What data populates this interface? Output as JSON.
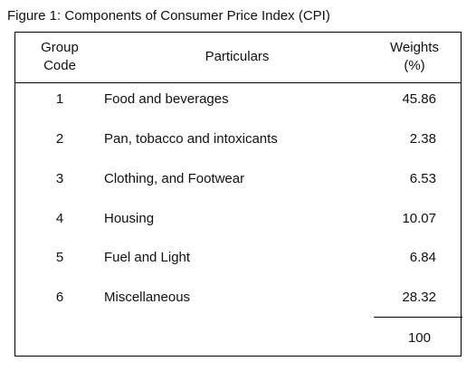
{
  "caption": "Figure 1: Components of Consumer Price Index (CPI)",
  "table": {
    "headers": {
      "group_code_line1": "Group",
      "group_code_line2": "Code",
      "particulars": "Particulars",
      "weights_line1": "Weights",
      "weights_line2": "(%)"
    },
    "rows": [
      {
        "code": "1",
        "particular": "Food and beverages",
        "weight": "45.86"
      },
      {
        "code": "2",
        "particular": "Pan, tobacco and intoxicants",
        "weight": "2.38"
      },
      {
        "code": "3",
        "particular": "Clothing, and Footwear",
        "weight": "6.53"
      },
      {
        "code": "4",
        "particular": "Housing",
        "weight": "10.07"
      },
      {
        "code": "5",
        "particular": "Fuel and Light",
        "weight": "6.84"
      },
      {
        "code": "6",
        "particular": "Miscellaneous",
        "weight": "28.32"
      }
    ],
    "total": "100"
  }
}
